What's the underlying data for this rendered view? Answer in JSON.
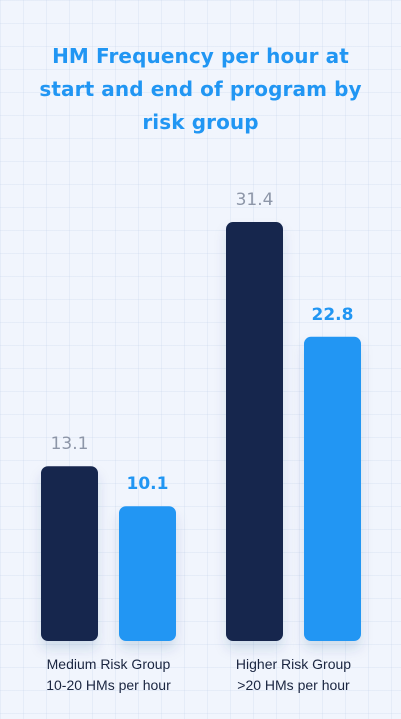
{
  "colors": {
    "background": "#f1f5fd",
    "title": "#2196f3",
    "start_bar": "#14274d",
    "end_bar": "#2196f3",
    "start_value_label": "#8d96a8",
    "end_value_label": "#2196f3",
    "category_label": "#1a2540"
  },
  "chart_data": {
    "type": "bar",
    "title": "HM Frequency per hour at start and end of program by risk group",
    "categories": [
      {
        "line1": "Medium Risk Group",
        "line2": "10-20 HMs per hour"
      },
      {
        "line1": "Higher Risk Group",
        "line2": ">20 HMs per hour"
      }
    ],
    "series": [
      {
        "values": [
          13.1,
          31.4
        ]
      },
      {
        "values": [
          10.1,
          22.8
        ]
      }
    ],
    "ylim": [
      0,
      35.6
    ],
    "grid": false,
    "legend": "none"
  }
}
